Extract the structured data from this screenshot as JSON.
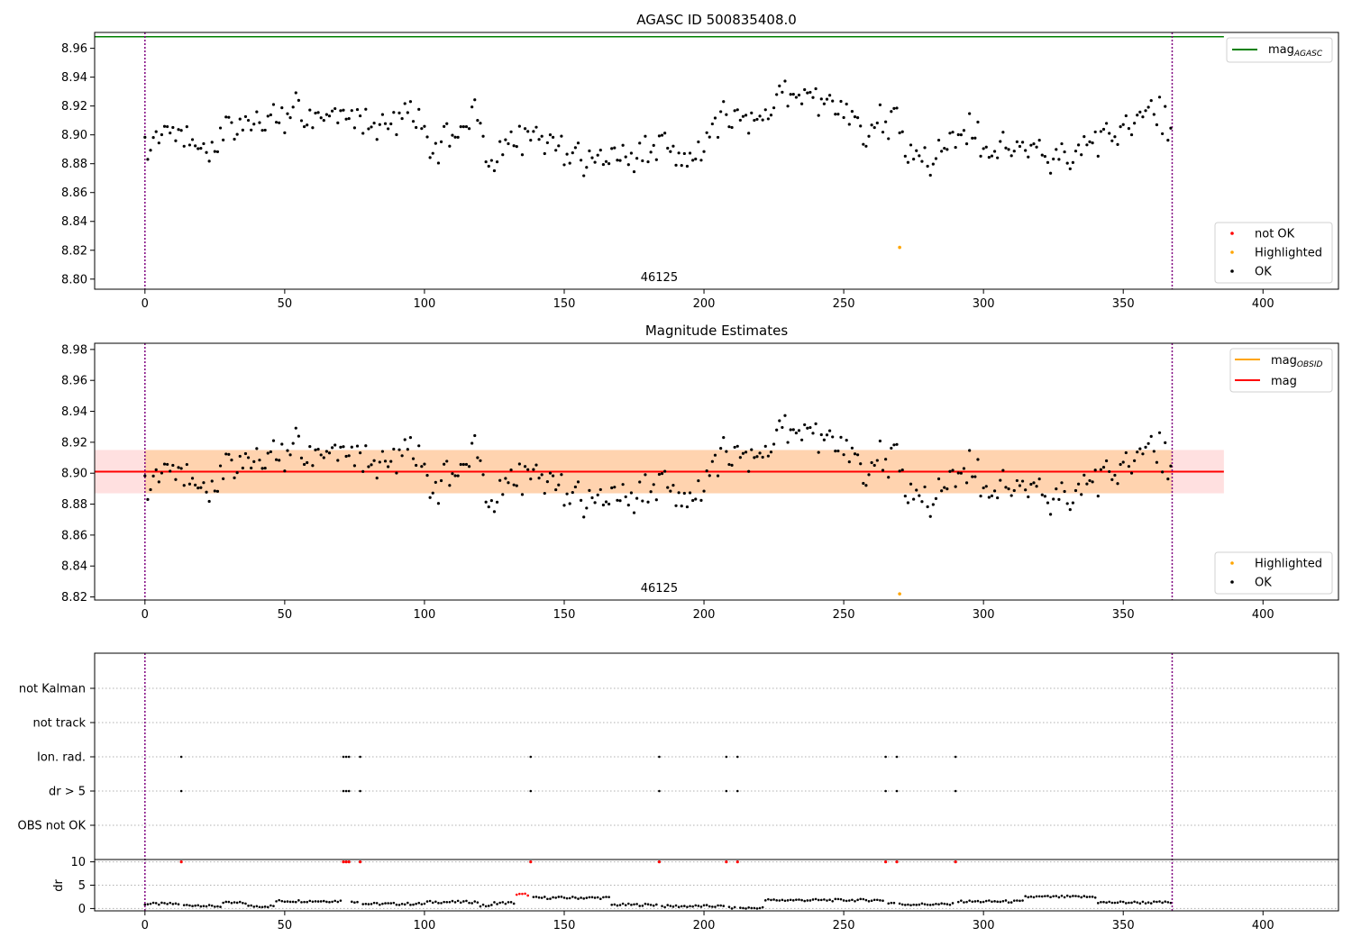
{
  "chart_data": [
    {
      "type": "scatter",
      "title": "AGASC ID 500835408.0",
      "xlim": [
        -18,
        427
      ],
      "ylim": [
        8.793,
        8.971
      ],
      "xticks": [
        0,
        50,
        100,
        150,
        200,
        250,
        300,
        350,
        400
      ],
      "yticks": [
        "8.80",
        "8.82",
        "8.84",
        "8.86",
        "8.88",
        "8.90",
        "8.92",
        "8.94",
        "8.96"
      ],
      "obsid_label": "46125",
      "obsid_label_x": 184,
      "obs_boundaries": [
        0,
        367.5
      ],
      "mag_agasc": {
        "label": "mag",
        "subscript": "AGASC",
        "color": "#008000",
        "value": 8.968,
        "x_range": [
          -18,
          386
        ]
      },
      "highlighted_point": {
        "x": 270,
        "y": 8.822,
        "color": "#ffa500"
      },
      "series": [
        {
          "name": "not OK",
          "color": "#ff0000"
        },
        {
          "name": "Highlighted",
          "color": "#ffa500"
        },
        {
          "name": "OK",
          "color": "#000000"
        }
      ],
      "legend_placement": [
        "upper right",
        "lower right"
      ]
    },
    {
      "type": "scatter",
      "title": "Magnitude Estimates",
      "xlim": [
        -18,
        427
      ],
      "ylim": [
        8.818,
        8.984
      ],
      "xticks": [
        0,
        50,
        100,
        150,
        200,
        250,
        300,
        350,
        400
      ],
      "yticks": [
        "8.82",
        "8.84",
        "8.86",
        "8.88",
        "8.90",
        "8.92",
        "8.94",
        "8.96",
        "8.98"
      ],
      "obsid_label": "46125",
      "obsid_label_x": 184,
      "obs_boundaries": [
        0,
        367.5
      ],
      "mag": {
        "label": "mag",
        "color": "#ff0000",
        "value": 8.901,
        "band": [
          8.887,
          8.915
        ],
        "x_range": [
          -18,
          386
        ]
      },
      "mag_obsid": {
        "label": "mag",
        "subscript": "OBSID",
        "color": "#ffa500",
        "value": 8.901,
        "band": [
          8.887,
          8.915
        ],
        "x_range": [
          0,
          367.5
        ]
      },
      "highlighted_point": {
        "x": 270,
        "y": 8.822,
        "color": "#ffa500"
      },
      "series": [
        {
          "name": "Highlighted",
          "color": "#ffa500"
        },
        {
          "name": "OK",
          "color": "#000000"
        }
      ],
      "legend_placement": [
        "upper right",
        "lower right"
      ]
    },
    {
      "type": "scatter",
      "xlim": [
        -18,
        427
      ],
      "flag_rows": [
        "not Kalman",
        "not track",
        "Ion. rad.",
        "dr > 5",
        "OBS not OK"
      ],
      "flag_points": {
        "Ion. rad.": [
          13,
          71,
          72,
          73,
          77,
          138,
          184,
          208,
          212,
          265,
          269,
          290
        ],
        "dr > 5": [
          13,
          71,
          72,
          73,
          77,
          138,
          184,
          208,
          212,
          265,
          269,
          290
        ]
      },
      "dr": {
        "ylabel": "dr",
        "ylim": [
          -0.5,
          10.5
        ],
        "yticks": [
          0,
          5,
          10
        ],
        "xticks": [
          0,
          50,
          100,
          150,
          200,
          250,
          300,
          350,
          400
        ],
        "outliers_x": [
          13,
          71,
          72,
          73,
          77,
          138,
          184,
          208,
          212,
          265,
          269,
          290
        ],
        "outlier_value": 10,
        "outlier_color": "#ff0000",
        "segments": [
          {
            "x": [
              0,
              12
            ],
            "y": 1.0
          },
          {
            "x": [
              14,
              21
            ],
            "y": 0.7
          },
          {
            "x": [
              22,
              27
            ],
            "y": 0.5
          },
          {
            "x": [
              28,
              36
            ],
            "y": 1.2
          },
          {
            "x": [
              37,
              46
            ],
            "y": 0.5
          },
          {
            "x": [
              47,
              70
            ],
            "y": 1.6
          },
          {
            "x": [
              74,
              76
            ],
            "y": 1.5
          },
          {
            "x": [
              78,
              100
            ],
            "y": 1.0
          },
          {
            "x": [
              101,
              119
            ],
            "y": 1.4
          },
          {
            "x": [
              120,
              124
            ],
            "y": 0.6
          },
          {
            "x": [
              125,
              132
            ],
            "y": 1.2
          },
          {
            "x": [
              133,
              137
            ],
            "y": 3.0
          },
          {
            "x": [
              139,
              166
            ],
            "y": 2.3
          },
          {
            "x": [
              167,
              183
            ],
            "y": 0.8
          },
          {
            "x": [
              185,
              207
            ],
            "y": 0.5
          },
          {
            "x": [
              209,
              221
            ],
            "y": 0.1
          },
          {
            "x": [
              222,
              264
            ],
            "y": 1.8
          },
          {
            "x": [
              266,
              268
            ],
            "y": 1.2
          },
          {
            "x": [
              270,
              289
            ],
            "y": 0.9
          },
          {
            "x": [
              291,
              314
            ],
            "y": 1.5
          },
          {
            "x": [
              315,
              340
            ],
            "y": 2.5
          },
          {
            "x": [
              341,
              367
            ],
            "y": 1.3
          }
        ]
      },
      "obs_boundaries": [
        0,
        367.5
      ]
    }
  ]
}
